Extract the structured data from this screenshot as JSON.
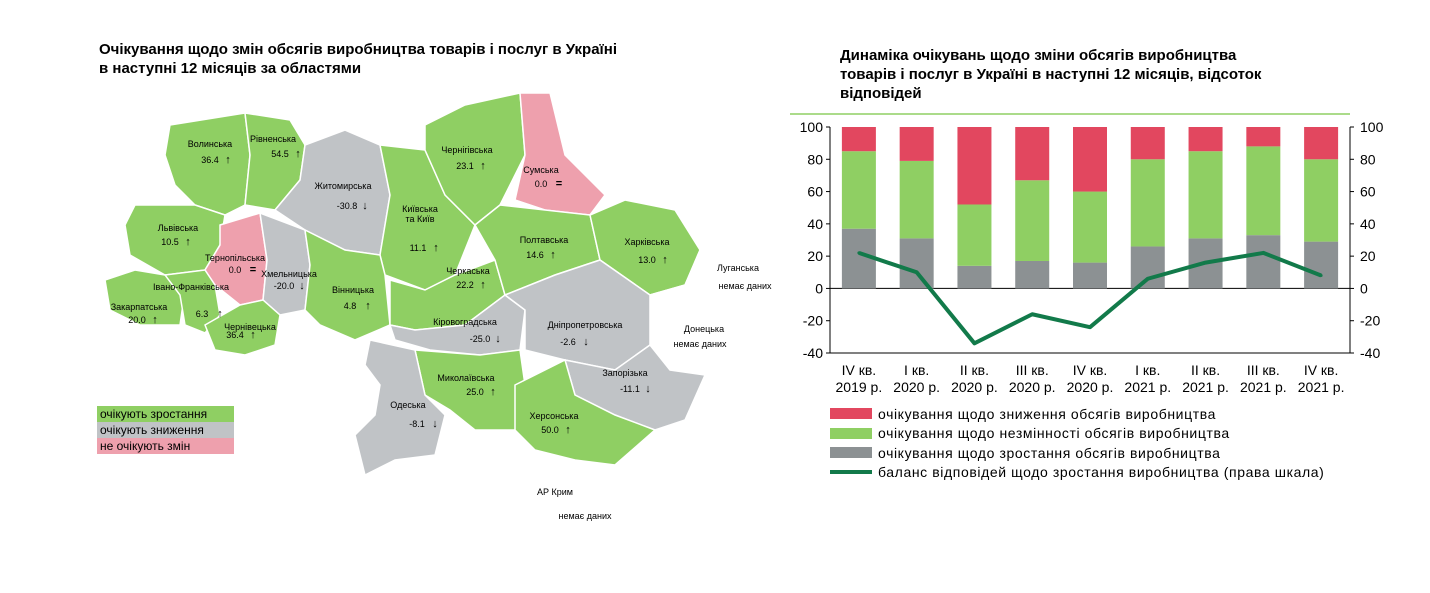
{
  "map": {
    "title_line1": "Очікування щодо змін обсягів виробництва товарів і послуг в Україні",
    "title_line2": "в наступні 12 місяців за областями",
    "legend": [
      {
        "label": "очікують зростання",
        "color": "#8fcf63"
      },
      {
        "label": "очікують зниження",
        "color": "#c0c3c6"
      },
      {
        "label": "не очікують змін",
        "color": "#eea0ad"
      }
    ],
    "regions": [
      {
        "name": "Волинська",
        "value": "36.4",
        "trend": "↑"
      },
      {
        "name": "Рівненська",
        "value": "54.5",
        "trend": "↑"
      },
      {
        "name": "Житомирська",
        "value": "-30.8",
        "trend": "↓"
      },
      {
        "name": "Київська та Київ",
        "name2": "та Київ",
        "value": "11.1",
        "trend": "↑"
      },
      {
        "name": "Чернігівська",
        "value": "23.1",
        "trend": "↑"
      },
      {
        "name": "Сумська",
        "value": "0.0",
        "trend": "="
      },
      {
        "name": "Львівська",
        "value": "10.5",
        "trend": "↑"
      },
      {
        "name": "Тернопільська",
        "value": "0.0",
        "trend": "="
      },
      {
        "name": "Хмельницька",
        "value": "-20.0",
        "trend": "↓"
      },
      {
        "name": "Вінницька",
        "value": "4.8",
        "trend": "↑"
      },
      {
        "name": "Черкаська",
        "value": "22.2",
        "trend": "↑"
      },
      {
        "name": "Полтавська",
        "value": "14.6",
        "trend": "↑"
      },
      {
        "name": "Харківська",
        "value": "13.0",
        "trend": "↑"
      },
      {
        "name": "Луганська",
        "value": "немає даних",
        "trend": ""
      },
      {
        "name": "Донецька",
        "value": "немає даних",
        "trend": ""
      },
      {
        "name": "Закарпатська",
        "value": "20.0",
        "trend": "↑"
      },
      {
        "name": "Івано-Франківська",
        "value": "6.3",
        "trend": "↑"
      },
      {
        "name": "Чернівецька",
        "value": "36.4",
        "trend": "↑"
      },
      {
        "name": "Кіровоградська",
        "value": "-25.0",
        "trend": "↓"
      },
      {
        "name": "Дніпропетровська",
        "value": "-2.6",
        "trend": "↓"
      },
      {
        "name": "Запорізька",
        "value": "-11.1",
        "trend": "↓"
      },
      {
        "name": "Миколаївська",
        "value": "25.0",
        "trend": "↑"
      },
      {
        "name": "Одеська",
        "value": "-8.1",
        "trend": "↓"
      },
      {
        "name": "Херсонська",
        "value": "50.0",
        "trend": "↑"
      },
      {
        "name": "АР Крим",
        "value": "немає даних",
        "trend": ""
      }
    ]
  },
  "chart_data": {
    "type": "bar",
    "title": "Динаміка очікувань щодо зміни обсягів виробництва товарів і послуг в Україні в наступні 12 місяців, відсоток відповідей",
    "title_lines": [
      "Динаміка очікувань щодо зміни обсягів виробництва",
      "товарів і послуг в Україні в наступні 12 місяців, відсоток",
      "відповідей"
    ],
    "categories": [
      [
        "IV кв.",
        "2019 р."
      ],
      [
        "I кв.",
        "2020 р."
      ],
      [
        "II кв.",
        "2020 р."
      ],
      [
        "III кв.",
        "2020 р."
      ],
      [
        "IV кв.",
        "2020 р."
      ],
      [
        "I кв.",
        "2021 р."
      ],
      [
        "II кв.",
        "2021 р."
      ],
      [
        "III кв.",
        "2021 р."
      ],
      [
        "IV кв.",
        "2021 р."
      ]
    ],
    "ylim": [
      -40,
      100
    ],
    "yticks": [
      -40,
      -20,
      0,
      20,
      40,
      60,
      80,
      100
    ],
    "stacked": true,
    "series": [
      {
        "name": "очікування щодо зростання обсягів виробництва",
        "color": "#8c9193",
        "values": [
          37,
          31,
          14,
          17,
          16,
          26,
          31,
          33,
          29
        ]
      },
      {
        "name": "очікування щодо незмінності обсягів виробництва",
        "color": "#8fcf63",
        "values": [
          48,
          48,
          38,
          50,
          44,
          54,
          54,
          55,
          51
        ]
      },
      {
        "name": "очікування щодо зниження обсягів виробництва",
        "color": "#e2475f",
        "values": [
          15,
          21,
          48,
          33,
          40,
          20,
          15,
          12,
          20
        ]
      }
    ],
    "line": {
      "name": "баланс відповідей щодо зростання виробництва (права шкала)",
      "color": "#127a4a",
      "values": [
        22,
        10,
        -34,
        -16,
        -24,
        6,
        16,
        22,
        8
      ]
    },
    "legend_order": [
      "очікування щодо зниження обсягів виробництва",
      "очікування щодо незмінності обсягів виробництва",
      "очікування щодо зростання обсягів виробництва",
      "баланс відповідей щодо зростання виробництва (права шкала)"
    ],
    "legend_placement": "bottom",
    "grid": false
  }
}
